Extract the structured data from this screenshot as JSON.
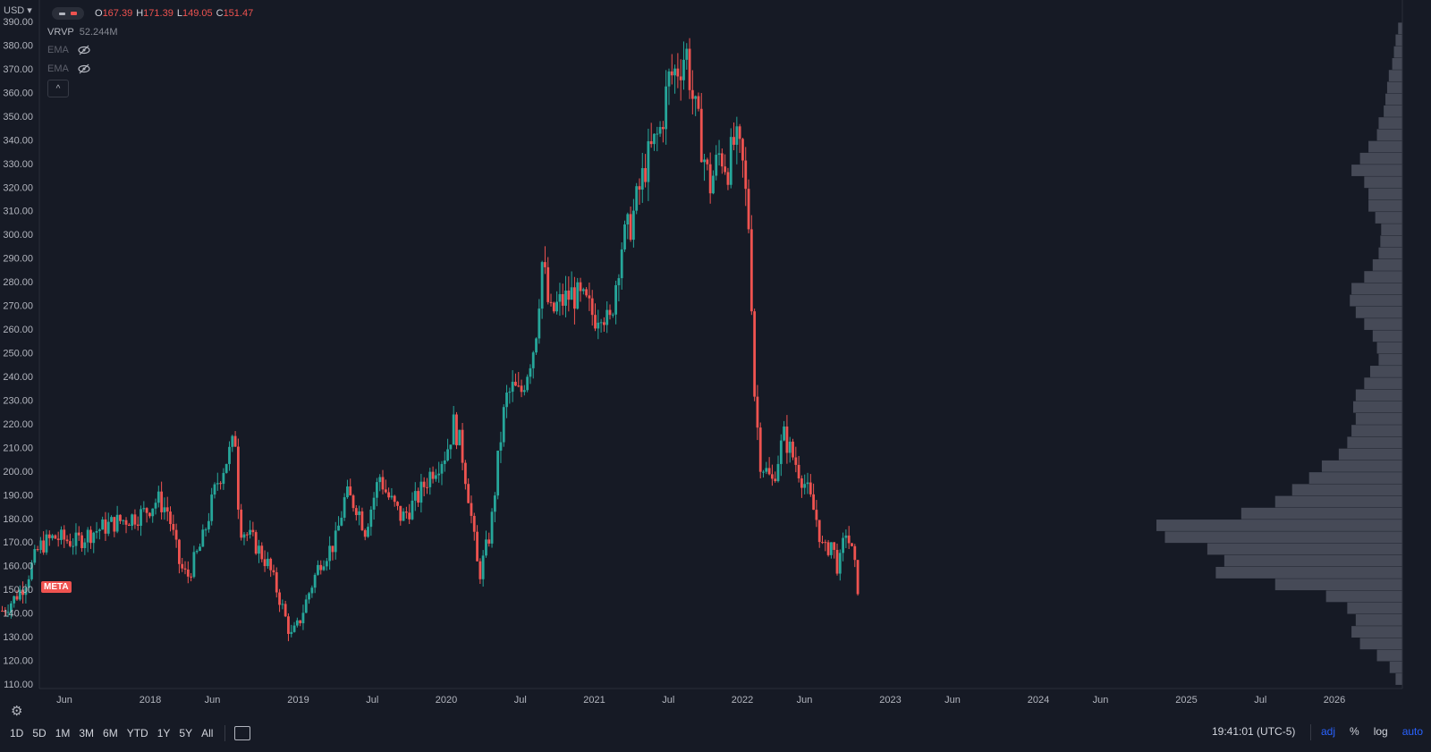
{
  "header": {
    "currency": "USD",
    "ohlc": [
      {
        "label": "O",
        "value": "167.39"
      },
      {
        "label": "H",
        "value": "171.39"
      },
      {
        "label": "L",
        "value": "149.05"
      },
      {
        "label": "C",
        "value": "151.47"
      }
    ]
  },
  "indicators": [
    {
      "name": "VRVP",
      "value": "52.244M"
    },
    {
      "name": "EMA",
      "value": ""
    },
    {
      "name": "EMA",
      "value": ""
    }
  ],
  "symbol_badge": "META",
  "toolbar": {
    "ranges": [
      "1D",
      "5D",
      "1M",
      "3M",
      "6M",
      "YTD",
      "1Y",
      "5Y",
      "All"
    ],
    "clock": "19:41:01 (UTC-5)",
    "options": [
      "adj",
      "%",
      "log",
      "auto"
    ]
  },
  "colors": {
    "up": "#26a69a",
    "down": "#ef5350",
    "background": "#161a25",
    "volume_profile": "#4f5360",
    "accent": "#2962ff"
  },
  "chart_data": {
    "type": "candlestick",
    "ylim": [
      110,
      390
    ],
    "yticks": [
      "110.00",
      "120.00",
      "130.00",
      "140.00",
      "150.00",
      "160.00",
      "170.00",
      "180.00",
      "190.00",
      "200.00",
      "210.00",
      "220.00",
      "230.00",
      "240.00",
      "250.00",
      "260.00",
      "270.00",
      "280.00",
      "290.00",
      "300.00",
      "310.00",
      "320.00",
      "330.00",
      "340.00",
      "350.00",
      "360.00",
      "370.00",
      "380.00",
      "390.00"
    ],
    "xticks": [
      {
        "label": "Jun",
        "t": 2017.42
      },
      {
        "label": "2018",
        "t": 2018.0
      },
      {
        "label": "Jun",
        "t": 2018.42
      },
      {
        "label": "2019",
        "t": 2019.0
      },
      {
        "label": "Jul",
        "t": 2019.5
      },
      {
        "label": "2020",
        "t": 2020.0
      },
      {
        "label": "Jul",
        "t": 2020.5
      },
      {
        "label": "2021",
        "t": 2021.0
      },
      {
        "label": "Jul",
        "t": 2021.5
      },
      {
        "label": "2022",
        "t": 2022.0
      },
      {
        "label": "Jun",
        "t": 2022.42
      },
      {
        "label": "2023",
        "t": 2023.0
      },
      {
        "label": "Jun",
        "t": 2023.42
      },
      {
        "label": "2024",
        "t": 2024.0
      },
      {
        "label": "Jun",
        "t": 2024.42
      },
      {
        "label": "2025",
        "t": 2025.0
      },
      {
        "label": "Jul",
        "t": 2025.5
      },
      {
        "label": "2026",
        "t": 2026.0
      }
    ],
    "price_path": [
      [
        2017.0,
        141
      ],
      [
        2017.08,
        146
      ],
      [
        2017.15,
        152
      ],
      [
        2017.25,
        168
      ],
      [
        2017.35,
        172
      ],
      [
        2017.5,
        170
      ],
      [
        2017.6,
        174
      ],
      [
        2017.75,
        178
      ],
      [
        2017.85,
        180
      ],
      [
        2017.95,
        182
      ],
      [
        2018.05,
        188
      ],
      [
        2018.12,
        183
      ],
      [
        2018.2,
        160
      ],
      [
        2018.25,
        155
      ],
      [
        2018.35,
        170
      ],
      [
        2018.45,
        195
      ],
      [
        2018.55,
        210
      ],
      [
        2018.58,
        214
      ],
      [
        2018.6,
        177
      ],
      [
        2018.7,
        170
      ],
      [
        2018.8,
        160
      ],
      [
        2018.88,
        145
      ],
      [
        2018.95,
        130
      ],
      [
        2019.0,
        135
      ],
      [
        2019.08,
        150
      ],
      [
        2019.15,
        162
      ],
      [
        2019.25,
        170
      ],
      [
        2019.32,
        190
      ],
      [
        2019.4,
        185
      ],
      [
        2019.45,
        175
      ],
      [
        2019.55,
        198
      ],
      [
        2019.6,
        190
      ],
      [
        2019.7,
        180
      ],
      [
        2019.8,
        188
      ],
      [
        2019.9,
        200
      ],
      [
        2020.0,
        208
      ],
      [
        2020.05,
        220
      ],
      [
        2020.1,
        210
      ],
      [
        2020.15,
        190
      ],
      [
        2020.22,
        155
      ],
      [
        2020.3,
        175
      ],
      [
        2020.35,
        205
      ],
      [
        2020.4,
        230
      ],
      [
        2020.45,
        235
      ],
      [
        2020.5,
        232
      ],
      [
        2020.6,
        255
      ],
      [
        2020.65,
        290
      ],
      [
        2020.7,
        265
      ],
      [
        2020.75,
        270
      ],
      [
        2020.85,
        275
      ],
      [
        2020.95,
        270
      ],
      [
        2021.0,
        265
      ],
      [
        2021.05,
        270
      ],
      [
        2021.1,
        260
      ],
      [
        2021.18,
        295
      ],
      [
        2021.25,
        305
      ],
      [
        2021.35,
        330
      ],
      [
        2021.45,
        345
      ],
      [
        2021.5,
        365
      ],
      [
        2021.58,
        372
      ],
      [
        2021.62,
        378
      ],
      [
        2021.67,
        355
      ],
      [
        2021.72,
        340
      ],
      [
        2021.78,
        320
      ],
      [
        2021.85,
        335
      ],
      [
        2021.9,
        328
      ],
      [
        2021.95,
        340
      ],
      [
        2022.0,
        330
      ],
      [
        2022.05,
        300
      ],
      [
        2022.08,
        235
      ],
      [
        2022.12,
        205
      ],
      [
        2022.2,
        195
      ],
      [
        2022.28,
        215
      ],
      [
        2022.35,
        205
      ],
      [
        2022.42,
        195
      ],
      [
        2022.5,
        180
      ],
      [
        2022.55,
        165
      ],
      [
        2022.6,
        170
      ],
      [
        2022.65,
        158
      ],
      [
        2022.7,
        175
      ],
      [
        2022.75,
        163
      ],
      [
        2022.78,
        151
      ]
    ],
    "volume_profile": [
      [
        112,
        8
      ],
      [
        117,
        15
      ],
      [
        122,
        30
      ],
      [
        127,
        50
      ],
      [
        132,
        60
      ],
      [
        137,
        55
      ],
      [
        142,
        65
      ],
      [
        147,
        90
      ],
      [
        152,
        150
      ],
      [
        157,
        220
      ],
      [
        162,
        210
      ],
      [
        167,
        230
      ],
      [
        172,
        280
      ],
      [
        177,
        290
      ],
      [
        182,
        190
      ],
      [
        187,
        150
      ],
      [
        192,
        130
      ],
      [
        197,
        110
      ],
      [
        202,
        95
      ],
      [
        207,
        75
      ],
      [
        212,
        65
      ],
      [
        217,
        60
      ],
      [
        222,
        55
      ],
      [
        227,
        58
      ],
      [
        232,
        55
      ],
      [
        237,
        45
      ],
      [
        242,
        38
      ],
      [
        247,
        28
      ],
      [
        252,
        30
      ],
      [
        257,
        35
      ],
      [
        262,
        45
      ],
      [
        267,
        55
      ],
      [
        272,
        62
      ],
      [
        277,
        60
      ],
      [
        282,
        45
      ],
      [
        287,
        35
      ],
      [
        292,
        28
      ],
      [
        297,
        26
      ],
      [
        302,
        25
      ],
      [
        307,
        32
      ],
      [
        312,
        40
      ],
      [
        317,
        40
      ],
      [
        322,
        45
      ],
      [
        327,
        60
      ],
      [
        332,
        50
      ],
      [
        337,
        40
      ],
      [
        342,
        30
      ],
      [
        347,
        28
      ],
      [
        352,
        22
      ],
      [
        357,
        20
      ],
      [
        362,
        18
      ],
      [
        367,
        16
      ],
      [
        372,
        12
      ],
      [
        377,
        10
      ],
      [
        382,
        8
      ],
      [
        387,
        5
      ]
    ]
  }
}
